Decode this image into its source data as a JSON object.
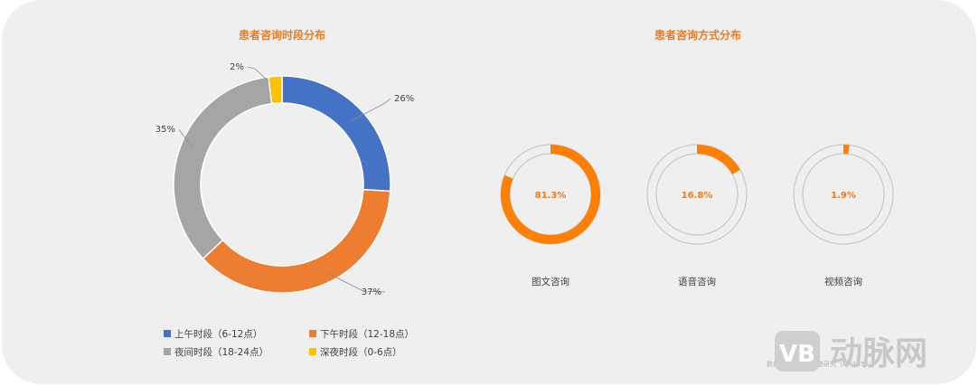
{
  "chart_data": [
    {
      "type": "pie",
      "title": "患者咨询时段分布",
      "categories": [
        "上午时段（6-12点）",
        "下午时段（12-18点）",
        "夜间时段（18-24点）",
        "深夜时段（0-6点）"
      ],
      "values": [
        26,
        37,
        35,
        2
      ],
      "labels": [
        "26%",
        "37%",
        "35%",
        "2%"
      ],
      "colors": [
        "#4472c4",
        "#ed7d31",
        "#a5a5a5",
        "#ffc000"
      ],
      "legend_position": "bottom"
    },
    {
      "type": "pie",
      "title": "患者咨询方式分布",
      "categories": [
        "图文咨询",
        "语音咨询",
        "视频咨询"
      ],
      "values": [
        81.3,
        16.8,
        1.9
      ],
      "labels": [
        "81.3%",
        "16.8%",
        "1.9%"
      ],
      "colors": [
        "#ff7f00",
        "#ff7f00",
        "#ff7f00"
      ]
    }
  ],
  "footer": {
    "source": "数据来源：患者调查研究（N=1055）"
  },
  "logo": {
    "mark": "VB",
    "text": "动脉网"
  }
}
